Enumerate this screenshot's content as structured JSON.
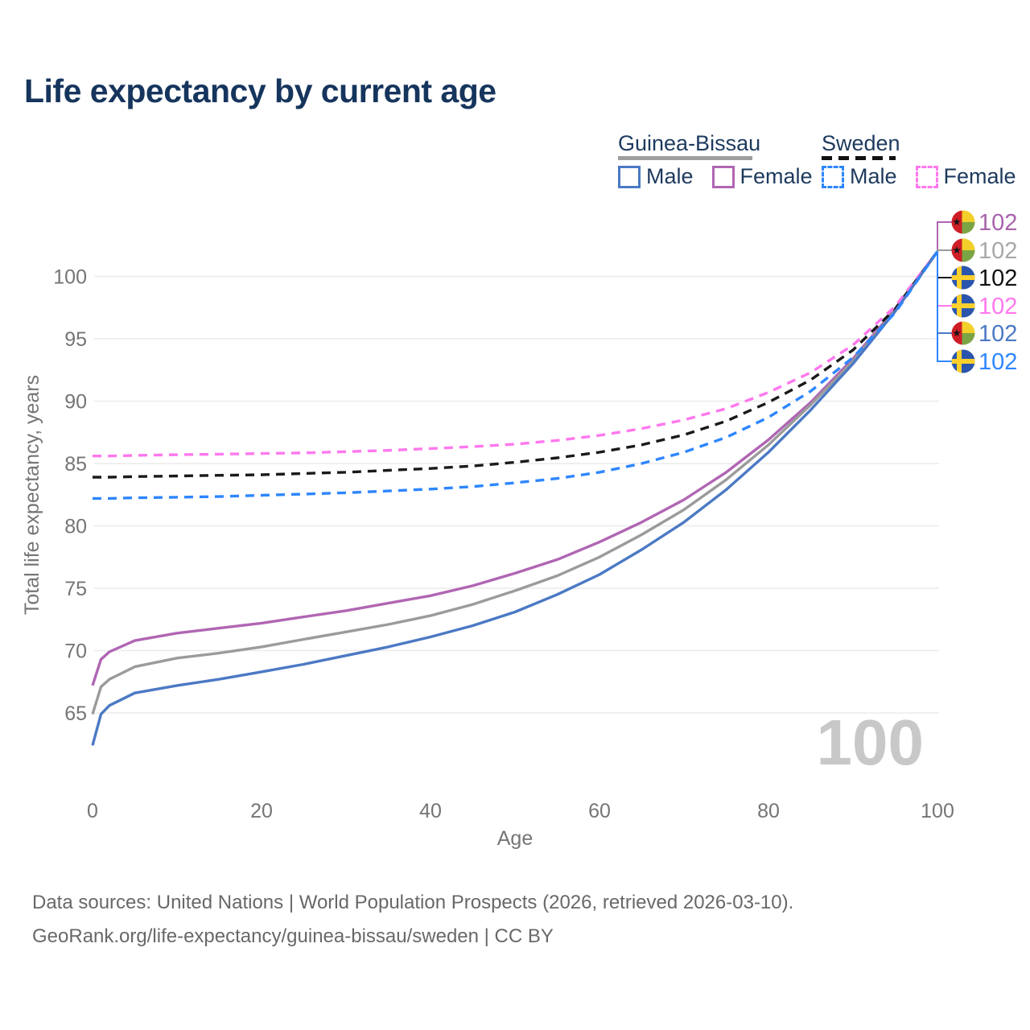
{
  "title": "Life expectancy by current age",
  "legend": {
    "groups": [
      {
        "label": "Guinea-Bissau",
        "line_style": "solid",
        "underline_color": "#9e9e9e",
        "items": [
          {
            "label": "Male",
            "color": "#4b79c4"
          },
          {
            "label": "Female",
            "color": "#b066b3"
          }
        ]
      },
      {
        "label": "Sweden",
        "line_style": "dashed",
        "underline_color": "#111111",
        "items": [
          {
            "label": "Male",
            "color": "#2e86ff"
          },
          {
            "label": "Female",
            "color": "#ff78ee"
          }
        ]
      }
    ]
  },
  "chart_data": {
    "type": "line",
    "title": "Life expectancy by current age",
    "xlabel": "Age",
    "ylabel": "Total life expectancy, years",
    "xticks": [
      0,
      20,
      40,
      60,
      80,
      100
    ],
    "yticks": [
      65,
      70,
      75,
      80,
      85,
      90,
      95,
      100
    ],
    "xlim": [
      0,
      100
    ],
    "ylim": [
      61,
      103
    ],
    "grid": "horizontal",
    "legend_position": "top-right",
    "watermark_age": "100",
    "x": [
      0,
      1,
      2,
      5,
      10,
      15,
      20,
      25,
      30,
      35,
      40,
      45,
      50,
      55,
      60,
      65,
      70,
      75,
      80,
      85,
      90,
      95,
      100
    ],
    "series": [
      {
        "name": "Guinea-Bissau Female",
        "country": "Guinea-Bissau",
        "flag": "guinea-bissau",
        "dash": false,
        "color": "#b066b3",
        "end_label": "102",
        "end_label_color": "#a963ac",
        "values": [
          67.2,
          69.3,
          69.9,
          70.8,
          71.4,
          71.8,
          72.2,
          72.7,
          73.2,
          73.8,
          74.4,
          75.2,
          76.2,
          77.3,
          78.7,
          80.3,
          82.1,
          84.3,
          86.9,
          89.9,
          93.4,
          97.4,
          102
        ]
      },
      {
        "name": "Guinea-Bissau Both sexes",
        "country": "Guinea-Bissau",
        "flag": "guinea-bissau",
        "dash": false,
        "color": "#9b9b9b",
        "end_label": "102",
        "end_label_color": "#a8a8a8",
        "values": [
          64.9,
          67.1,
          67.7,
          68.7,
          69.4,
          69.8,
          70.3,
          70.9,
          71.5,
          72.1,
          72.8,
          73.7,
          74.8,
          76.0,
          77.5,
          79.3,
          81.3,
          83.7,
          86.5,
          89.7,
          93.2,
          97.3,
          102
        ]
      },
      {
        "name": "Sweden Both sexes",
        "country": "Sweden",
        "flag": "sweden",
        "dash": true,
        "color": "#1a1a1a",
        "end_label": "102",
        "end_label_color": "#111111",
        "values": [
          83.9,
          83.9,
          83.9,
          83.95,
          84.0,
          84.05,
          84.1,
          84.2,
          84.3,
          84.45,
          84.6,
          84.8,
          85.1,
          85.45,
          85.9,
          86.5,
          87.3,
          88.4,
          89.9,
          91.7,
          94.1,
          97.4,
          102
        ]
      },
      {
        "name": "Sweden Female",
        "country": "Sweden",
        "flag": "sweden",
        "dash": true,
        "color": "#ff78ee",
        "end_label": "102",
        "end_label_color": "#ff78ee",
        "values": [
          85.6,
          85.6,
          85.6,
          85.65,
          85.7,
          85.75,
          85.8,
          85.85,
          85.95,
          86.05,
          86.2,
          86.35,
          86.55,
          86.85,
          87.25,
          87.8,
          88.5,
          89.4,
          90.7,
          92.3,
          94.5,
          97.6,
          102
        ]
      },
      {
        "name": "Guinea-Bissau Male",
        "country": "Guinea-Bissau",
        "flag": "guinea-bissau",
        "dash": false,
        "color": "#4b79c4",
        "end_label": "102",
        "end_label_color": "#4b79c4",
        "values": [
          62.4,
          64.9,
          65.6,
          66.6,
          67.2,
          67.7,
          68.3,
          68.9,
          69.6,
          70.3,
          71.1,
          72.0,
          73.1,
          74.5,
          76.1,
          78.1,
          80.3,
          82.9,
          85.9,
          89.3,
          93.0,
          97.2,
          102
        ]
      },
      {
        "name": "Sweden Male",
        "country": "Sweden",
        "flag": "sweden",
        "dash": true,
        "color": "#2e86ff",
        "end_label": "102",
        "end_label_color": "#2e86ff",
        "values": [
          82.2,
          82.2,
          82.2,
          82.25,
          82.3,
          82.35,
          82.45,
          82.55,
          82.65,
          82.8,
          82.95,
          83.15,
          83.45,
          83.8,
          84.3,
          85.0,
          85.9,
          87.1,
          88.7,
          90.8,
          93.5,
          97.1,
          102
        ]
      }
    ]
  },
  "footer": {
    "line1": "Data sources: United Nations | World Population Prospects (2026, retrieved 2026-03-10).",
    "line2": "GeoRank.org/life-expectancy/guinea-bissau/sweden | CC BY"
  }
}
